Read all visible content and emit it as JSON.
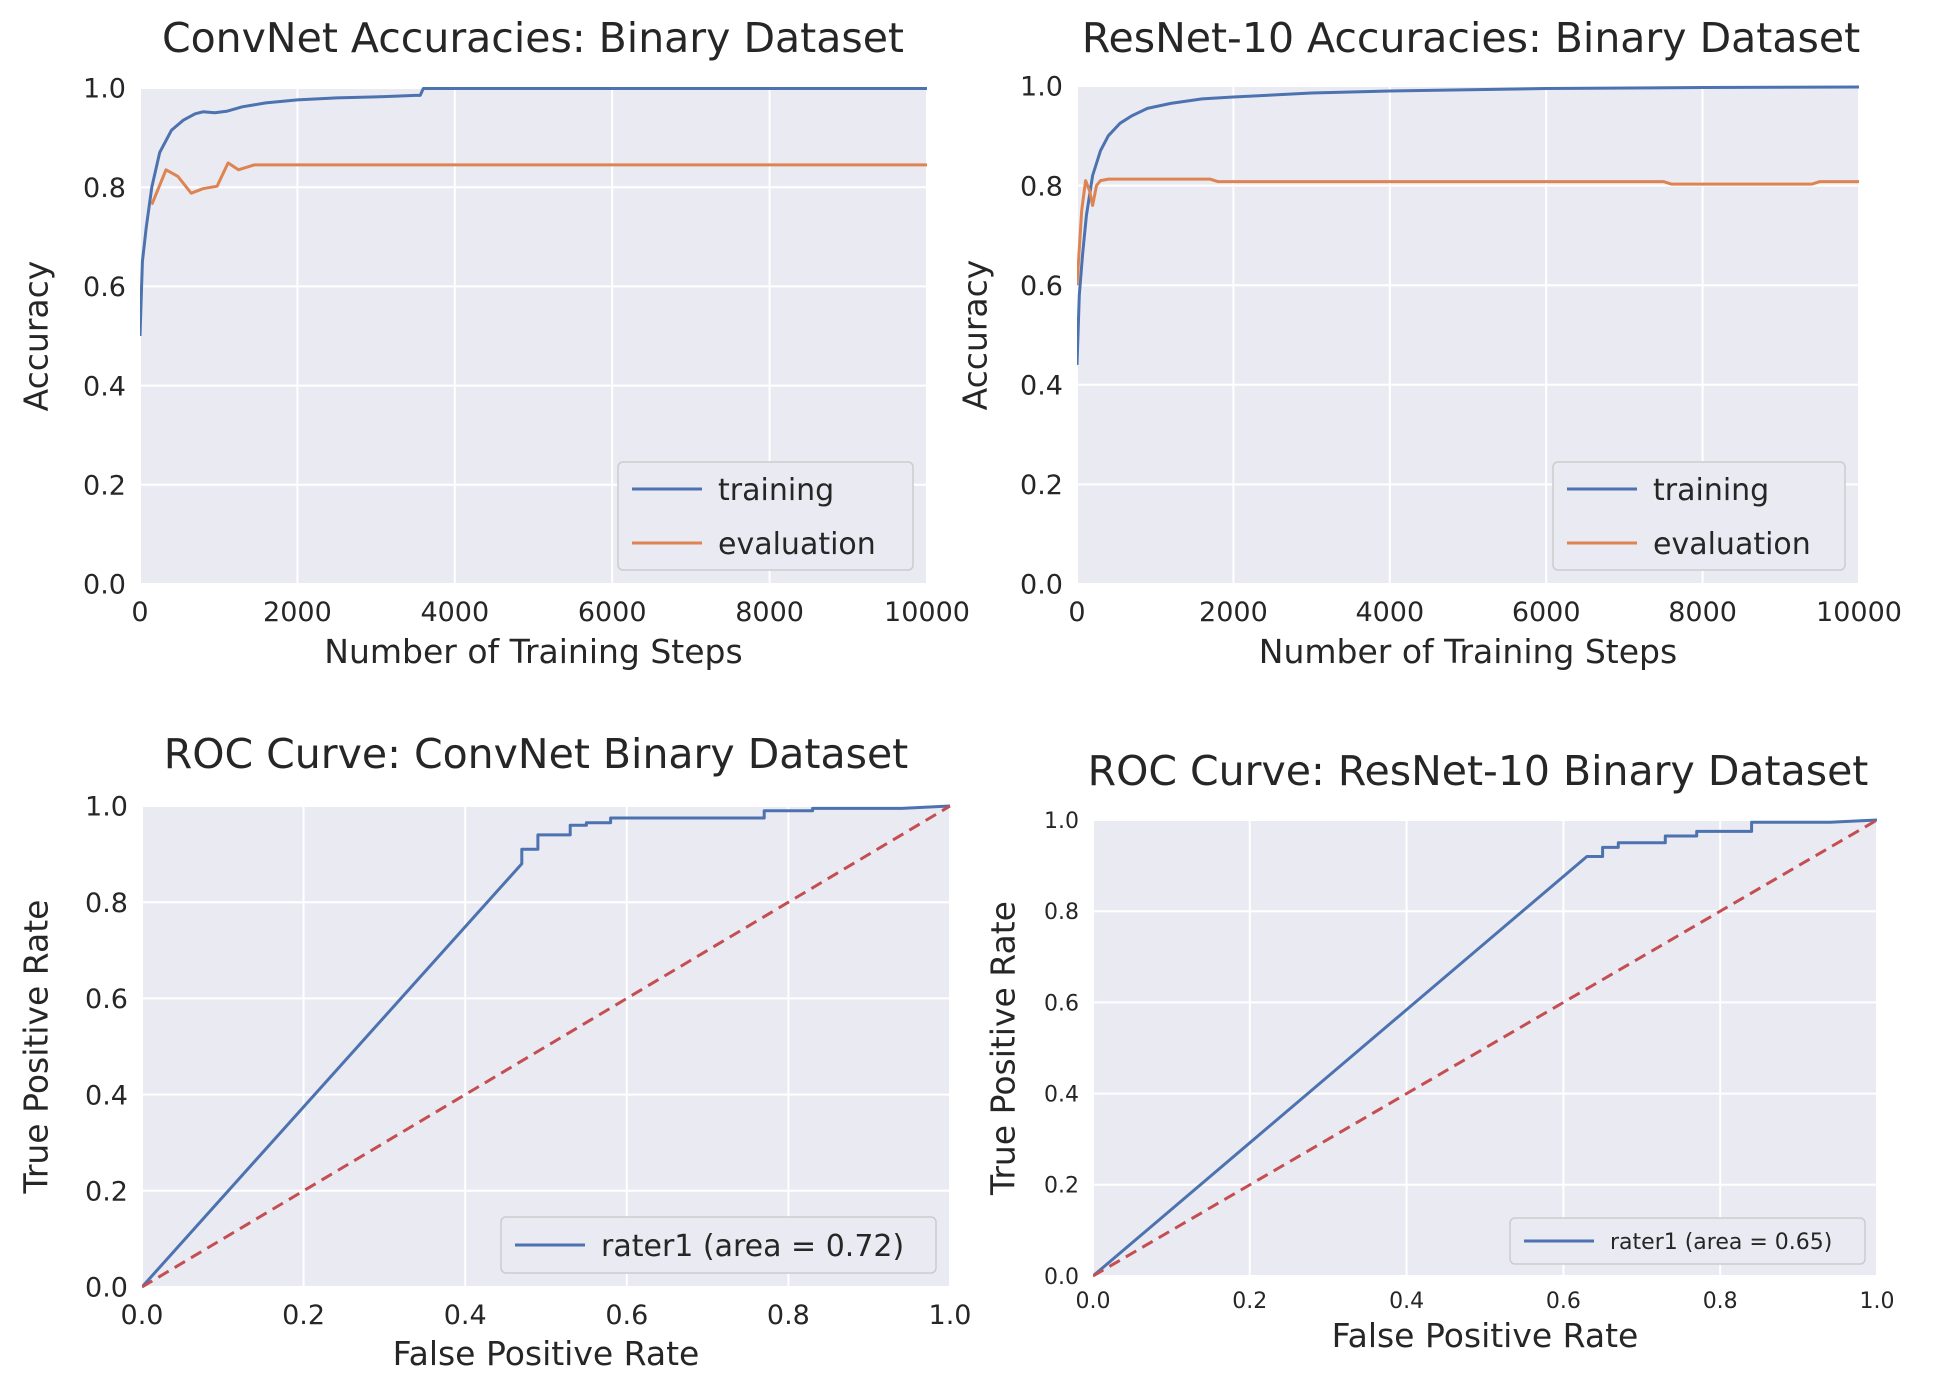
{
  "colors": {
    "plot_background": "#eaeaf2",
    "grid": "#ffffff",
    "training": "#4c72b0",
    "evaluation": "#dd8452",
    "roc": "#4c72b0",
    "diagonal": "#c44e52",
    "text": "#262626"
  },
  "chart_data": [
    {
      "id": "convnet-accuracy",
      "type": "line",
      "title": "ConvNet Accuracies: Binary Dataset",
      "xlabel": "Number of Training Steps",
      "ylabel": "Accuracy",
      "xlim": [
        0,
        10000
      ],
      "ylim": [
        0,
        1.0
      ],
      "xticks": [
        0,
        2000,
        4000,
        6000,
        8000,
        10000
      ],
      "xtick_labels": [
        "0",
        "2000",
        "4000",
        "6000",
        "8000",
        "10000"
      ],
      "yticks": [
        0,
        0.2,
        0.4,
        0.6,
        0.8,
        1.0
      ],
      "ytick_labels": [
        "0.0",
        "0.2",
        "0.4",
        "0.6",
        "0.8",
        "1.0"
      ],
      "grid": true,
      "legend": "lower-right",
      "series": [
        {
          "name": "training",
          "color_key": "training",
          "x": [
            0,
            30,
            80,
            150,
            250,
            400,
            550,
            700,
            800,
            950,
            1100,
            1300,
            1600,
            2000,
            2500,
            3000,
            3500,
            3560,
            3600,
            4000,
            6000,
            8000,
            10000
          ],
          "y": [
            0.5,
            0.65,
            0.72,
            0.8,
            0.87,
            0.915,
            0.935,
            0.948,
            0.952,
            0.95,
            0.953,
            0.962,
            0.97,
            0.976,
            0.98,
            0.982,
            0.985,
            0.985,
            0.999,
            0.999,
            0.999,
            0.999,
            0.999
          ]
        },
        {
          "name": "evaluation",
          "color_key": "evaluation",
          "x": [
            150,
            330,
            480,
            650,
            800,
            980,
            1120,
            1250,
            1450,
            2000,
            4000,
            6000,
            8000,
            10000
          ],
          "y": [
            0.765,
            0.835,
            0.822,
            0.788,
            0.797,
            0.802,
            0.849,
            0.835,
            0.845,
            0.845,
            0.845,
            0.845,
            0.845,
            0.845
          ]
        }
      ]
    },
    {
      "id": "resnet-accuracy",
      "type": "line",
      "title": "ResNet-10 Accuracies: Binary Dataset",
      "xlabel": "Number of Training Steps",
      "ylabel": "Accuracy",
      "xlim": [
        0,
        10000
      ],
      "ylim": [
        0,
        1.0
      ],
      "xticks": [
        0,
        2000,
        4000,
        6000,
        8000,
        10000
      ],
      "xtick_labels": [
        "0",
        "2000",
        "4000",
        "6000",
        "8000",
        "10000"
      ],
      "yticks": [
        0,
        0.2,
        0.4,
        0.6,
        0.8,
        1.0
      ],
      "ytick_labels": [
        "0.0",
        "0.2",
        "0.4",
        "0.6",
        "0.8",
        "1.0"
      ],
      "grid": true,
      "legend": "lower-right",
      "series": [
        {
          "name": "training",
          "color_key": "training",
          "x": [
            0,
            30,
            70,
            120,
            200,
            300,
            400,
            550,
            700,
            900,
            1200,
            1600,
            2000,
            3000,
            4000,
            6000,
            8000,
            10000
          ],
          "y": [
            0.44,
            0.58,
            0.66,
            0.74,
            0.82,
            0.87,
            0.9,
            0.925,
            0.94,
            0.955,
            0.965,
            0.974,
            0.978,
            0.986,
            0.99,
            0.995,
            0.997,
            0.998
          ]
        },
        {
          "name": "evaluation",
          "color_key": "evaluation",
          "x": [
            0,
            60,
            110,
            160,
            200,
            250,
            300,
            400,
            1700,
            1800,
            7500,
            7600,
            9400,
            9500,
            10000
          ],
          "y": [
            0.6,
            0.75,
            0.81,
            0.79,
            0.76,
            0.8,
            0.81,
            0.813,
            0.813,
            0.808,
            0.808,
            0.803,
            0.803,
            0.808,
            0.808
          ]
        }
      ]
    },
    {
      "id": "convnet-roc",
      "type": "line",
      "title": "ROC Curve: ConvNet Binary Dataset",
      "xlabel": "False Positive Rate",
      "ylabel": "True Positive Rate",
      "xlim": [
        0,
        1.0
      ],
      "ylim": [
        0,
        1.0
      ],
      "xticks": [
        0,
        0.2,
        0.4,
        0.6,
        0.8,
        1.0
      ],
      "xtick_labels": [
        "0.0",
        "0.2",
        "0.4",
        "0.6",
        "0.8",
        "1.0"
      ],
      "yticks": [
        0,
        0.2,
        0.4,
        0.6,
        0.8,
        1.0
      ],
      "ytick_labels": [
        "0.0",
        "0.2",
        "0.4",
        "0.6",
        "0.8",
        "1.0"
      ],
      "grid": true,
      "legend": "lower-right",
      "series": [
        {
          "name": "rater1 (area = 0.72)",
          "color_key": "roc",
          "x": [
            0,
            0.47,
            0.47,
            0.49,
            0.49,
            0.53,
            0.53,
            0.55,
            0.55,
            0.58,
            0.58,
            0.77,
            0.77,
            0.83,
            0.83,
            0.94,
            1.0
          ],
          "y": [
            0,
            0.88,
            0.91,
            0.91,
            0.94,
            0.94,
            0.96,
            0.96,
            0.965,
            0.965,
            0.975,
            0.975,
            0.99,
            0.99,
            0.995,
            0.995,
            1.0
          ]
        },
        {
          "name": "",
          "color_key": "diagonal",
          "dashed": true,
          "x": [
            0,
            1
          ],
          "y": [
            0,
            1
          ]
        }
      ]
    },
    {
      "id": "resnet-roc",
      "type": "line",
      "title": "ROC Curve: ResNet-10 Binary Dataset",
      "xlabel": "False Positive Rate",
      "ylabel": "True Positive Rate",
      "xlim": [
        0,
        1.0
      ],
      "ylim": [
        0,
        1.0
      ],
      "xticks": [
        0,
        0.2,
        0.4,
        0.6,
        0.8,
        1.0
      ],
      "xtick_labels": [
        "0.0",
        "0.2",
        "0.4",
        "0.6",
        "0.8",
        "1.0"
      ],
      "yticks": [
        0,
        0.2,
        0.4,
        0.6,
        0.8,
        1.0
      ],
      "ytick_labels": [
        "0.0",
        "0.2",
        "0.4",
        "0.6",
        "0.8",
        "1.0"
      ],
      "grid": true,
      "legend": "lower-right",
      "series": [
        {
          "name": "rater1 (area = 0.65)",
          "color_key": "roc",
          "x": [
            0,
            0.63,
            0.63,
            0.65,
            0.65,
            0.67,
            0.67,
            0.73,
            0.73,
            0.77,
            0.77,
            0.84,
            0.84,
            0.94,
            1.0
          ],
          "y": [
            0,
            0.92,
            0.92,
            0.92,
            0.94,
            0.94,
            0.95,
            0.95,
            0.965,
            0.965,
            0.975,
            0.975,
            0.995,
            0.995,
            1.0
          ]
        },
        {
          "name": "",
          "color_key": "diagonal",
          "dashed": true,
          "x": [
            0,
            1
          ],
          "y": [
            0,
            1
          ]
        }
      ]
    }
  ]
}
